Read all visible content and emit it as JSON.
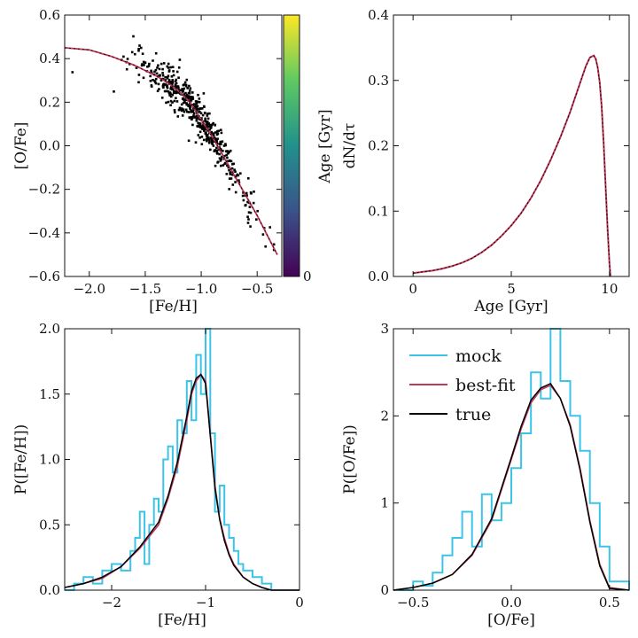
{
  "colors": {
    "mock": "#3cc4e8",
    "bestfit": "#c0395a",
    "true": "#000000",
    "points": "#000000",
    "viridis": [
      "#440154",
      "#3b528b",
      "#21918c",
      "#5ec962",
      "#fde725"
    ]
  },
  "chart_data": [
    {
      "id": "ofe_vs_feh",
      "type": "scatter",
      "xlabel": "[Fe/H]",
      "ylabel": "[O/Fe]",
      "xlim": [
        -2.22,
        -0.28
      ],
      "ylim": [
        -0.6,
        0.6
      ],
      "xticks": [
        -2.0,
        -1.5,
        -1.0,
        -0.5
      ],
      "xtick_labels": [
        "−2.0",
        "−1.5",
        "−1.0",
        "−0.5"
      ],
      "yticks": [
        -0.6,
        -0.4,
        -0.2,
        0.0,
        0.2,
        0.4,
        0.6
      ],
      "ytick_labels": [
        "−0.6",
        "−0.4",
        "−0.2",
        "0.0",
        "0.2",
        "0.4",
        "0.6"
      ],
      "track": {
        "x": [
          -2.22,
          -2.0,
          -1.8,
          -1.6,
          -1.4,
          -1.3,
          -1.2,
          -1.1,
          -1.0,
          -0.9,
          -0.8,
          -0.7,
          -0.6,
          -0.5,
          -0.4,
          -0.32
        ],
        "y": [
          0.45,
          0.44,
          0.41,
          0.37,
          0.32,
          0.29,
          0.25,
          0.2,
          0.12,
          0.04,
          -0.05,
          -0.14,
          -0.23,
          -0.32,
          -0.42,
          -0.5
        ]
      },
      "scatter_count": 520,
      "colorbar": {
        "label": "Age [Gyr]",
        "ticks": [
          0
        ],
        "tick_labels": [
          "0"
        ]
      }
    },
    {
      "id": "age_distribution",
      "type": "line",
      "xlabel": "Age [Gyr]",
      "ylabel": "dN/dτ",
      "xlim": [
        -1.0,
        11.0
      ],
      "ylim": [
        0.0,
        0.4
      ],
      "xticks": [
        0,
        5,
        10
      ],
      "xtick_labels": [
        "0",
        "5",
        "10"
      ],
      "yticks": [
        0.0,
        0.1,
        0.2,
        0.3,
        0.4
      ],
      "ytick_labels": [
        "0.0",
        "0.1",
        "0.2",
        "0.3",
        "0.4"
      ],
      "x": [
        0,
        0.5,
        1,
        1.5,
        2,
        2.5,
        3,
        3.5,
        4,
        4.5,
        5,
        5.5,
        6,
        6.5,
        7,
        7.5,
        8,
        8.5,
        8.8,
        9.0,
        9.2,
        9.3,
        9.4,
        9.5,
        9.6,
        9.7,
        9.8,
        9.9,
        10.0,
        10.05
      ],
      "y": [
        0.005,
        0.007,
        0.009,
        0.012,
        0.016,
        0.021,
        0.028,
        0.037,
        0.048,
        0.062,
        0.078,
        0.097,
        0.12,
        0.147,
        0.178,
        0.213,
        0.252,
        0.296,
        0.322,
        0.335,
        0.338,
        0.333,
        0.32,
        0.297,
        0.26,
        0.205,
        0.14,
        0.075,
        0.02,
        0.0
      ]
    },
    {
      "id": "feh_mdf",
      "type": "line",
      "xlabel": "[Fe/H]",
      "ylabel": "P([Fe/H])",
      "xlim": [
        -2.5,
        0.0
      ],
      "ylim": [
        0.0,
        2.0
      ],
      "xticks": [
        -2,
        -1,
        0
      ],
      "xtick_labels": [
        "−2",
        "−1",
        "0"
      ],
      "yticks": [
        0.0,
        0.5,
        1.0,
        1.5,
        2.0
      ],
      "ytick_labels": [
        "0.0",
        "0.5",
        "1.0",
        "1.5",
        "2.0"
      ],
      "series": [
        {
          "name": "mock",
          "x": [
            -2.5,
            -2.4,
            -2.3,
            -2.2,
            -2.1,
            -2.0,
            -1.9,
            -1.8,
            -1.75,
            -1.7,
            -1.65,
            -1.6,
            -1.55,
            -1.5,
            -1.45,
            -1.4,
            -1.35,
            -1.3,
            -1.25,
            -1.2,
            -1.15,
            -1.1,
            -1.05,
            -1.0,
            -0.95,
            -0.9,
            -0.85,
            -0.8,
            -0.75,
            -0.7,
            -0.65,
            -0.6,
            -0.5,
            -0.4,
            -0.3,
            0.0
          ],
          "y": [
            0.0,
            0.05,
            0.1,
            0.05,
            0.15,
            0.2,
            0.15,
            0.3,
            0.4,
            0.6,
            0.2,
            0.5,
            0.7,
            0.6,
            1.0,
            1.1,
            0.9,
            1.3,
            1.2,
            1.6,
            1.3,
            1.8,
            1.5,
            2.0,
            1.2,
            0.6,
            0.8,
            0.5,
            0.4,
            0.3,
            0.2,
            0.15,
            0.1,
            0.05,
            0.0,
            0.0
          ]
        },
        {
          "name": "best-fit",
          "x": [
            -2.5,
            -2.3,
            -2.1,
            -1.9,
            -1.7,
            -1.5,
            -1.4,
            -1.3,
            -1.2,
            -1.15,
            -1.1,
            -1.05,
            -1.0,
            -0.95,
            -0.9,
            -0.85,
            -0.8,
            -0.75,
            -0.7,
            -0.6,
            -0.5,
            -0.4,
            -0.3,
            0.0
          ],
          "y": [
            0.02,
            0.05,
            0.09,
            0.18,
            0.32,
            0.5,
            0.7,
            0.95,
            1.3,
            1.5,
            1.6,
            1.65,
            1.6,
            1.2,
            0.8,
            0.55,
            0.4,
            0.28,
            0.2,
            0.1,
            0.05,
            0.02,
            0.0,
            0.0
          ]
        },
        {
          "name": "true",
          "x": [
            -2.5,
            -2.3,
            -2.1,
            -1.9,
            -1.7,
            -1.5,
            -1.4,
            -1.3,
            -1.2,
            -1.15,
            -1.1,
            -1.05,
            -1.0,
            -0.95,
            -0.9,
            -0.85,
            -0.8,
            -0.75,
            -0.7,
            -0.6,
            -0.5,
            -0.4,
            -0.3,
            0.0
          ],
          "y": [
            0.02,
            0.05,
            0.1,
            0.18,
            0.33,
            0.52,
            0.72,
            0.98,
            1.33,
            1.52,
            1.62,
            1.65,
            1.58,
            1.18,
            0.78,
            0.54,
            0.38,
            0.27,
            0.19,
            0.1,
            0.05,
            0.02,
            0.0,
            0.0
          ]
        }
      ]
    },
    {
      "id": "ofe_mdf",
      "type": "line",
      "xlabel": "[O/Fe]",
      "ylabel": "P([O/Fe])",
      "xlim": [
        -0.6,
        0.6
      ],
      "ylim": [
        0.0,
        3.0
      ],
      "xticks": [
        -0.5,
        0.0,
        0.5
      ],
      "xtick_labels": [
        "−0.5",
        "0.0",
        "0.5"
      ],
      "yticks": [
        0,
        1,
        2,
        3
      ],
      "ytick_labels": [
        "0",
        "1",
        "2",
        "3"
      ],
      "series": [
        {
          "name": "mock",
          "x": [
            -0.6,
            -0.5,
            -0.45,
            -0.4,
            -0.35,
            -0.3,
            -0.25,
            -0.2,
            -0.15,
            -0.1,
            -0.05,
            0.0,
            0.05,
            0.1,
            0.15,
            0.2,
            0.25,
            0.3,
            0.35,
            0.4,
            0.45,
            0.5,
            0.6
          ],
          "y": [
            0.0,
            0.1,
            0.05,
            0.2,
            0.4,
            0.6,
            0.9,
            0.5,
            1.1,
            0.8,
            1.0,
            1.4,
            1.8,
            2.5,
            2.2,
            3.0,
            2.4,
            2.0,
            1.6,
            1.0,
            0.5,
            0.1,
            0.0
          ]
        },
        {
          "name": "best-fit",
          "x": [
            -0.6,
            -0.5,
            -0.4,
            -0.3,
            -0.2,
            -0.1,
            0.0,
            0.05,
            0.1,
            0.15,
            0.2,
            0.25,
            0.3,
            0.35,
            0.4,
            0.45,
            0.5,
            0.6
          ],
          "y": [
            0.0,
            0.03,
            0.08,
            0.18,
            0.4,
            0.8,
            1.5,
            1.85,
            2.15,
            2.3,
            2.35,
            2.2,
            1.9,
            1.4,
            0.8,
            0.3,
            0.03,
            0.0
          ]
        },
        {
          "name": "true",
          "x": [
            -0.6,
            -0.5,
            -0.4,
            -0.3,
            -0.2,
            -0.1,
            0.0,
            0.05,
            0.1,
            0.15,
            0.2,
            0.25,
            0.3,
            0.35,
            0.4,
            0.45,
            0.5,
            0.6
          ],
          "y": [
            0.0,
            0.03,
            0.08,
            0.18,
            0.41,
            0.82,
            1.52,
            1.88,
            2.18,
            2.32,
            2.37,
            2.2,
            1.88,
            1.38,
            0.78,
            0.28,
            0.02,
            0.0
          ]
        }
      ],
      "legend": [
        "mock",
        "best-fit",
        "true"
      ]
    }
  ]
}
